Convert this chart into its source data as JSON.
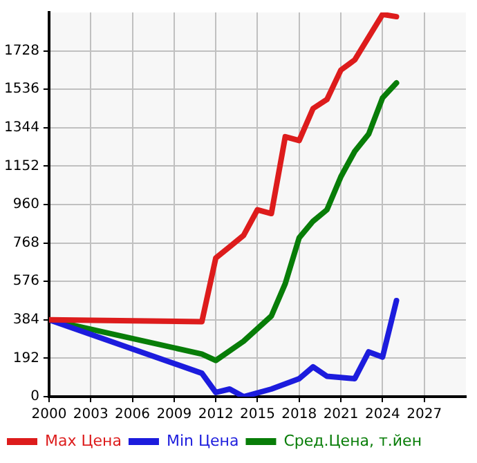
{
  "chart_data": {
    "type": "line",
    "xlim": [
      2000,
      2030
    ],
    "xticks": [
      2000,
      2003,
      2006,
      2009,
      2012,
      2015,
      2018,
      2021,
      2024,
      2027
    ],
    "ylim": [
      0,
      1920
    ],
    "yticks": [
      0,
      192,
      384,
      576,
      768,
      960,
      1152,
      1344,
      1536,
      1728
    ],
    "grid": true,
    "legend": "bottom",
    "marker": "none",
    "line_style": "solid",
    "series": [
      {
        "name": "Max Цена",
        "color": "#dd1c1c",
        "x": [
          2000,
          2011,
          2012,
          2013,
          2014,
          2015,
          2016,
          2017,
          2018,
          2019,
          2020,
          2021,
          2022,
          2024,
          2025
        ],
        "values": [
          384,
          375,
          693,
          749,
          806,
          934,
          915,
          1299,
          1280,
          1440,
          1485,
          1632,
          1683,
          1910,
          1899
        ]
      },
      {
        "name": "Min Цена",
        "color": "#1c1cdd",
        "x": [
          2000,
          2011,
          2012,
          2013,
          2014,
          2016,
          2018,
          2019,
          2020,
          2022,
          2023,
          2024,
          2025
        ],
        "values": [
          384,
          117,
          21,
          38,
          0,
          38,
          90,
          149,
          102,
          90,
          224,
          198,
          480
        ]
      },
      {
        "name": "Сред.Цена, т.йен",
        "color": "#087d08",
        "x": [
          2000,
          2011,
          2012,
          2014,
          2016,
          2017,
          2018,
          2019,
          2020,
          2021,
          2022,
          2023,
          2024,
          2025
        ],
        "values": [
          384,
          213,
          181,
          277,
          403,
          565,
          794,
          877,
          934,
          1099,
          1226,
          1312,
          1493,
          1568
        ]
      }
    ]
  }
}
